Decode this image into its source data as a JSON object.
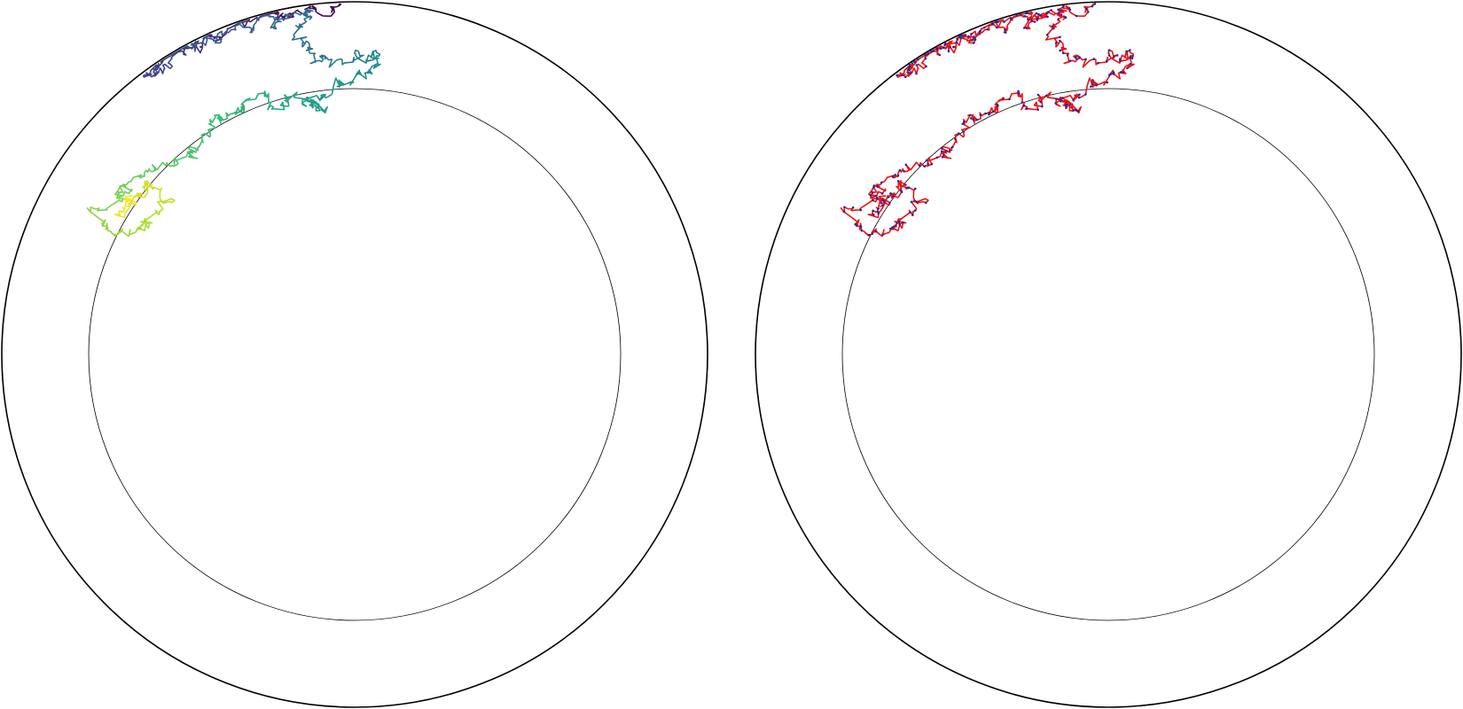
{
  "panels": [
    {
      "id": "left",
      "style": "colormap",
      "colormap": [
        "#440154",
        "#482878",
        "#3e4a89",
        "#31688e",
        "#26828e",
        "#1f9e89",
        "#35b779",
        "#6ece58",
        "#b5de2b",
        "#fde725"
      ]
    },
    {
      "id": "right",
      "style": "two-tone",
      "line_color": "#ee1111",
      "point_color": "#2a2a9a"
    }
  ],
  "trajectory": {
    "description_free": true,
    "seed": 20240611,
    "path": [
      [
        -0.04,
        0.997
      ],
      [
        -0.12,
        0.99
      ],
      [
        -0.22,
        0.972
      ],
      [
        -0.32,
        0.94
      ],
      [
        -0.41,
        0.9
      ],
      [
        -0.49,
        0.855
      ],
      [
        -0.55,
        0.82
      ],
      [
        -0.595,
        0.785
      ],
      [
        -0.52,
        0.82
      ],
      [
        -0.4,
        0.885
      ],
      [
        -0.28,
        0.93
      ],
      [
        -0.14,
        0.97
      ],
      [
        -0.12,
        0.95
      ],
      [
        -0.14,
        0.9
      ],
      [
        -0.12,
        0.86
      ],
      [
        -0.06,
        0.82
      ],
      [
        0.02,
        0.84
      ],
      [
        0.07,
        0.86
      ],
      [
        0.05,
        0.8
      ],
      [
        0.0,
        0.77
      ],
      [
        -0.06,
        0.74
      ],
      [
        -0.12,
        0.72
      ],
      [
        -0.09,
        0.69
      ],
      [
        -0.16,
        0.74
      ],
      [
        -0.22,
        0.7
      ],
      [
        -0.27,
        0.73
      ],
      [
        -0.32,
        0.7
      ],
      [
        -0.38,
        0.67
      ],
      [
        -0.41,
        0.62
      ],
      [
        -0.45,
        0.58
      ],
      [
        -0.5,
        0.55
      ],
      [
        -0.56,
        0.53
      ],
      [
        -0.62,
        0.5
      ],
      [
        -0.66,
        0.46
      ],
      [
        -0.7,
        0.42
      ],
      [
        -0.72,
        0.38
      ],
      [
        -0.68,
        0.34
      ],
      [
        -0.62,
        0.36
      ],
      [
        -0.56,
        0.4
      ],
      [
        -0.52,
        0.44
      ],
      [
        -0.58,
        0.48
      ],
      [
        -0.64,
        0.44
      ],
      [
        -0.68,
        0.4
      ],
      [
        -0.63,
        0.45
      ]
    ]
  }
}
